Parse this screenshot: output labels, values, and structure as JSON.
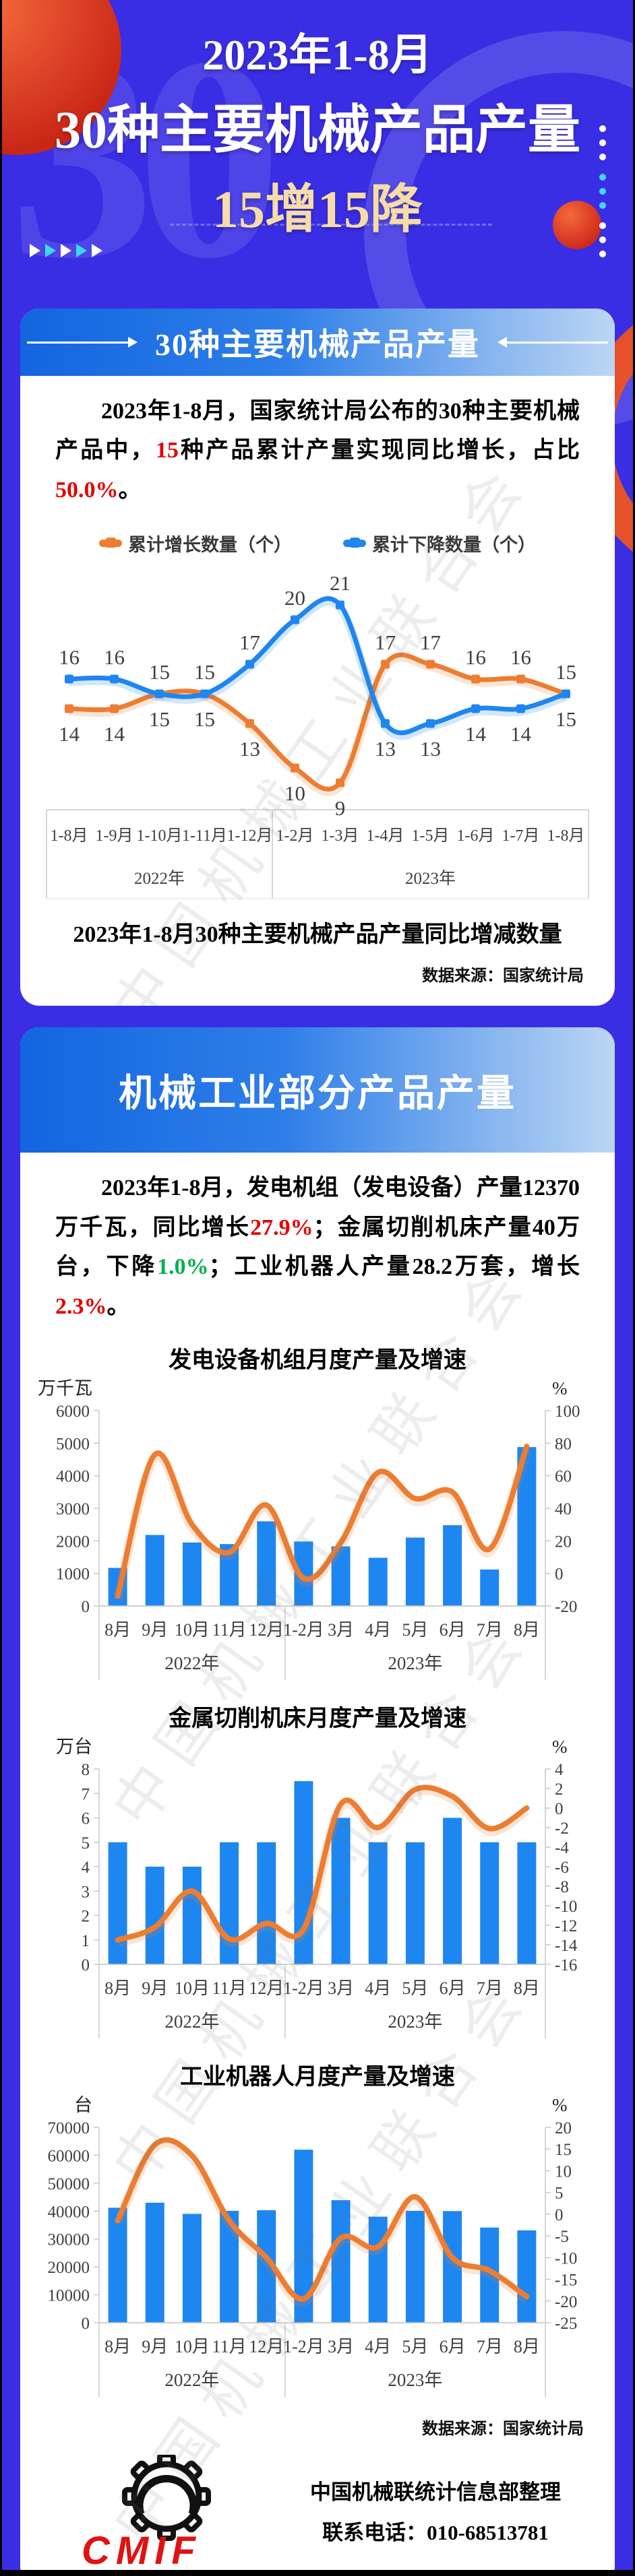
{
  "page": {
    "title_line1": "2023年1-8月",
    "title_line2": "30种主要机械产品产量",
    "title_line3": "15增15降",
    "header_watermark": "30",
    "watermark": "中国机械工业联合会",
    "colors": {
      "background": "#3A2EE4",
      "bar_blue": "#1E86F0",
      "line_orange": "#ED7D31",
      "accent_red": "#E60000",
      "decline_green": "#00B050",
      "title_cream": "#F6DCA8"
    }
  },
  "section1": {
    "header": "30种主要机械产品产量",
    "paragraph": [
      {
        "text": "2023年1-8月，国家统计局公布的30种主要机械产品中，"
      },
      {
        "text": "15",
        "color": "#E60000"
      },
      {
        "text": "种产品累计产量实现同比增长，占比"
      },
      {
        "text": "50.0%",
        "color": "#E60000"
      },
      {
        "text": "。"
      }
    ],
    "source": "数据来源：国家统计局"
  },
  "section2": {
    "header": "机械工业部分产品产量",
    "paragraph": [
      {
        "text": "2023年1-8月，发电机组（发电设备）产量12370万千瓦，同比增长"
      },
      {
        "text": "27.9%",
        "color": "#E60000"
      },
      {
        "text": "；金属切削机床产量40万台，下降"
      },
      {
        "text": "1.0%",
        "color": "#00B050"
      },
      {
        "text": "；工业机器人产量28.2万套，增长"
      },
      {
        "text": "2.3%",
        "color": "#E60000"
      },
      {
        "text": "。"
      }
    ],
    "source": "数据来源：国家统计局"
  },
  "footer": {
    "org": "中国机械联统计信息部整理",
    "tel": "联系电话：010-68513781",
    "logo_text": "CMIF"
  },
  "chart_data": [
    {
      "id": "increase-decrease-count",
      "type": "line",
      "title": "2023年1-8月30种主要机械产品产量同比增减数量",
      "categories": [
        "1-8月",
        "1-9月",
        "1-10月",
        "1-11月",
        "1-12月",
        "1-2月",
        "1-3月",
        "1-4月",
        "1-5月",
        "1-6月",
        "1-7月",
        "1-8月"
      ],
      "year_groups": [
        {
          "label": "2022年",
          "count": 5
        },
        {
          "label": "2023年",
          "count": 7
        }
      ],
      "ylim": [
        8,
        22
      ],
      "legend_position": "top",
      "grid": false,
      "series": [
        {
          "name": "累计增长数量（个）",
          "color": "#ED7D31",
          "values": [
            14,
            14,
            15,
            15,
            13,
            10,
            9,
            17,
            17,
            16,
            16,
            15
          ]
        },
        {
          "name": "累计下降数量（个）",
          "color": "#1F86F0",
          "values": [
            16,
            16,
            15,
            15,
            17,
            20,
            21,
            13,
            13,
            14,
            14,
            15
          ]
        }
      ]
    },
    {
      "id": "power-generation-equipment",
      "type": "bar+line",
      "title": "发电设备机组月度产量及增速",
      "unit_left": "万千瓦",
      "unit_right": "%",
      "categories": [
        "8月",
        "9月",
        "10月",
        "11月",
        "12月",
        "1-2月",
        "3月",
        "4月",
        "5月",
        "6月",
        "7月",
        "8月"
      ],
      "year_groups": [
        {
          "label": "2022年",
          "count": 5
        },
        {
          "label": "2023年",
          "count": 7
        }
      ],
      "left_axis": {
        "min": 0,
        "max": 6000,
        "step": 1000
      },
      "right_axis": {
        "min": -20,
        "max": 100,
        "step": 20
      },
      "bars": {
        "color": "#1E86F0",
        "values": [
          1170,
          2180,
          1950,
          1900,
          2600,
          1980,
          1830,
          1480,
          2100,
          2480,
          1120,
          4880
        ]
      },
      "line": {
        "color": "#ED7D31",
        "values": [
          -14,
          73,
          30,
          13,
          42,
          -3,
          19,
          62,
          46,
          50,
          15,
          78
        ]
      }
    },
    {
      "id": "metal-cutting-machine-tools",
      "type": "bar+line",
      "title": "金属切削机床月度产量及增速",
      "unit_left": "万台",
      "unit_right": "%",
      "categories": [
        "8月",
        "9月",
        "10月",
        "11月",
        "12月",
        "1-2月",
        "3月",
        "4月",
        "5月",
        "6月",
        "7月",
        "8月"
      ],
      "year_groups": [
        {
          "label": "2022年",
          "count": 5
        },
        {
          "label": "2023年",
          "count": 7
        }
      ],
      "left_axis": {
        "min": 0,
        "max": 8,
        "step": 1
      },
      "right_axis": {
        "min": -16,
        "max": 4,
        "step": 2
      },
      "bars": {
        "color": "#1E86F0",
        "values": [
          5,
          4,
          4,
          5,
          5,
          7.5,
          6,
          5,
          5,
          6,
          5,
          5
        ]
      },
      "line": {
        "color": "#ED7D31",
        "values": [
          -13.5,
          -12.2,
          -8.5,
          -13.4,
          -11.8,
          -12.4,
          0.4,
          -2,
          1.9,
          1.2,
          -2.1,
          0
        ]
      }
    },
    {
      "id": "industrial-robots",
      "type": "bar+line",
      "title": "工业机器人月度产量及增速",
      "unit_left": "台",
      "unit_right": "%",
      "categories": [
        "8月",
        "9月",
        "10月",
        "11月",
        "12月",
        "1-2月",
        "3月",
        "4月",
        "5月",
        "6月",
        "7月",
        "8月"
      ],
      "year_groups": [
        {
          "label": "2022年",
          "count": 5
        },
        {
          "label": "2023年",
          "count": 7
        }
      ],
      "left_axis": {
        "min": 0,
        "max": 70000,
        "step": 10000
      },
      "right_axis": {
        "min": -25,
        "max": 20,
        "step": 5
      },
      "bars": {
        "color": "#1E86F0",
        "values": [
          41200,
          43000,
          39000,
          40100,
          40300,
          62000,
          43900,
          38000,
          40100,
          40000,
          34100,
          33100
        ]
      },
      "line": {
        "color": "#ED7D31",
        "values": [
          -1.5,
          16,
          13.5,
          -1.5,
          -10,
          -19.5,
          -5.5,
          -7.5,
          4,
          -10,
          -13,
          -19
        ]
      }
    }
  ]
}
